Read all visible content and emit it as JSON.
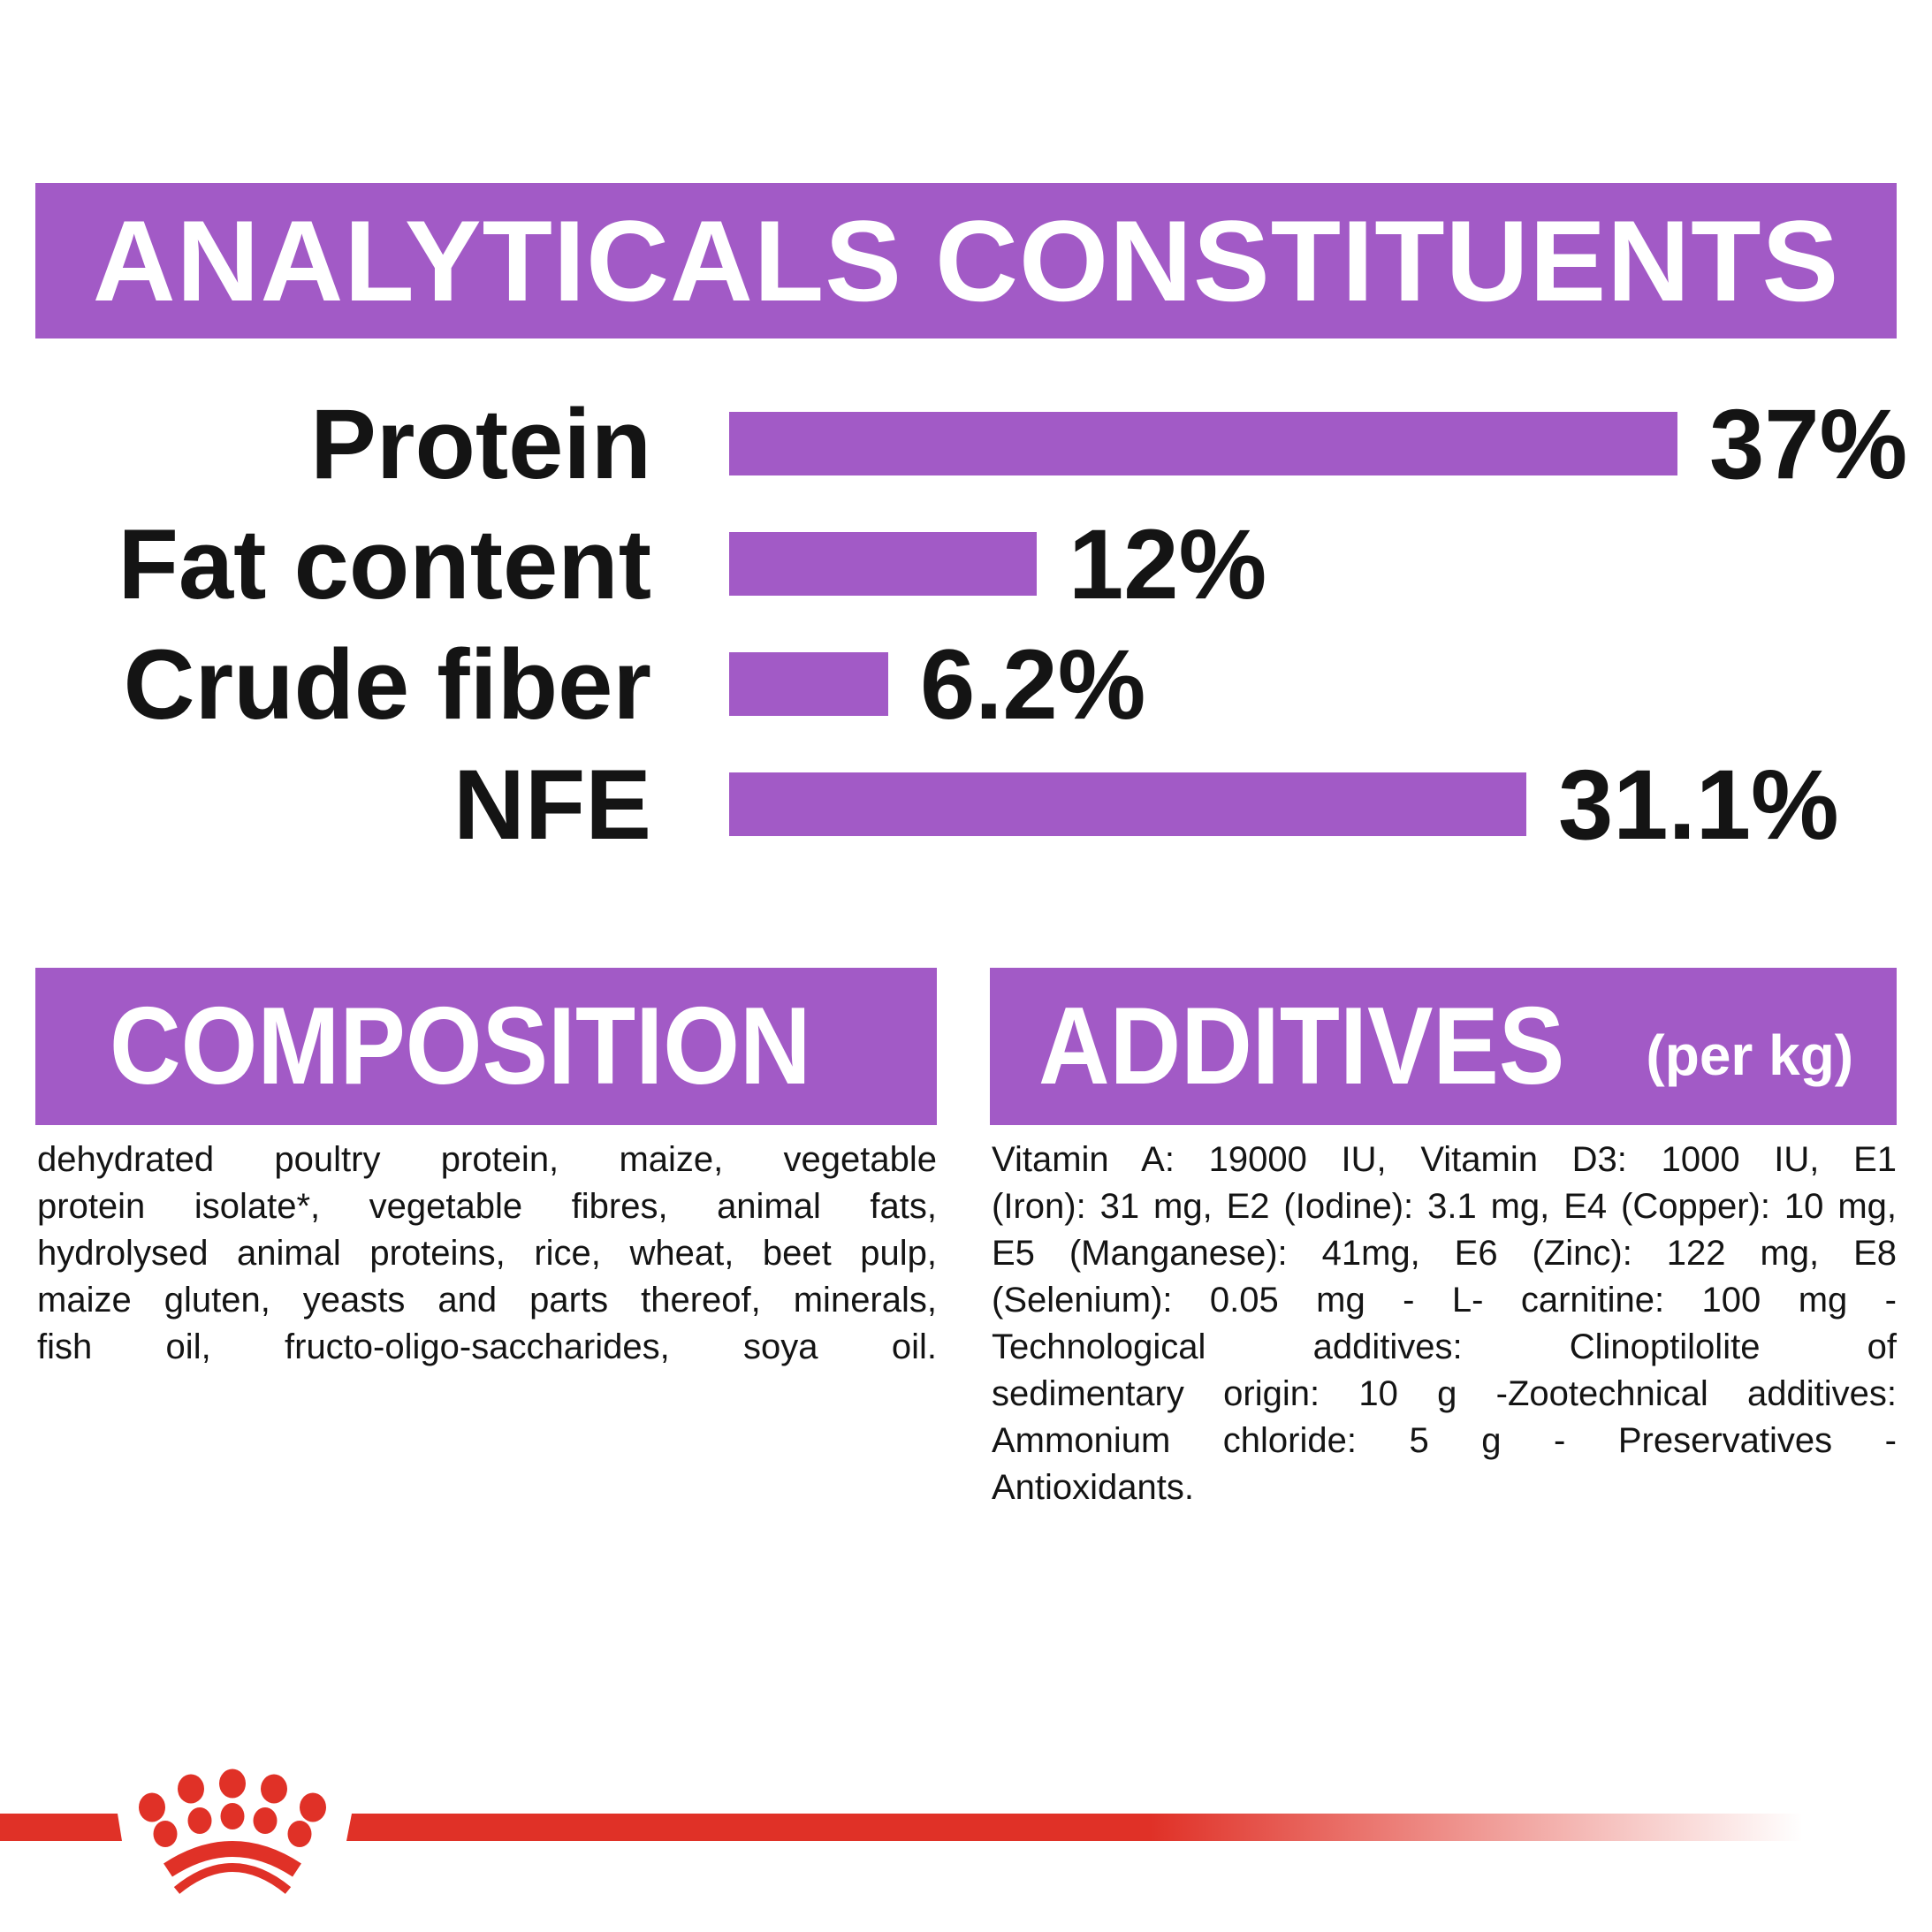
{
  "colors": {
    "purple": "#a25ac6",
    "red": "#e03127",
    "text": "#141414",
    "band_text": "#ffffff",
    "background": "#ffffff"
  },
  "header": {
    "title": "ANALYTICALS CONSTITUENTS"
  },
  "chart_data": {
    "type": "bar",
    "orientation": "horizontal",
    "title": "ANALYTICALS CONSTITUENTS",
    "categories": [
      "Protein",
      "Fat content",
      "Crude fiber",
      "NFE"
    ],
    "values": [
      37,
      12,
      6.2,
      31.1
    ],
    "value_labels": [
      "37%",
      "12%",
      "6.2%",
      "31.1%"
    ],
    "unit": "%",
    "xlim": [
      0,
      40
    ],
    "grid": false,
    "legend": false,
    "bar_color": "#a25ac6",
    "value_label_position": "end-of-bar"
  },
  "composition": {
    "title": "COMPOSITION",
    "lines": [
      "dehydrated poultry protein, maize, vegetable",
      "protein isolate*, vegetable fibres, animal fats,",
      "hydrolysed animal proteins, rice, wheat, beet pulp,",
      "maize gluten, yeasts and parts thereof, minerals,",
      "fish oil, fructo-oligo-saccharides, soya oil."
    ]
  },
  "additives": {
    "title": "ADDITIVES",
    "suffix": "(per kg)",
    "lines": [
      "Vitamin A: 19000 IU, Vitamin D3: 1000 IU, E1",
      "(Iron): 31 mg, E2 (Iodine): 3.1 mg, E4 (Copper): 10 mg,",
      "E5 (Manganese): 41mg, E6 (Zinc): 122 mg, E8",
      "(Selenium): 0.05 mg - L- carnitine: 100 mg -",
      "Technological additives: Clinoptilolite of",
      "sedimentary origin: 10 g -Zootechnical additives:",
      "Ammonium chloride: 5 g - Preservatives -",
      "Antioxidants."
    ]
  },
  "footer": {
    "logo": "royal-canin-crown-logo"
  }
}
